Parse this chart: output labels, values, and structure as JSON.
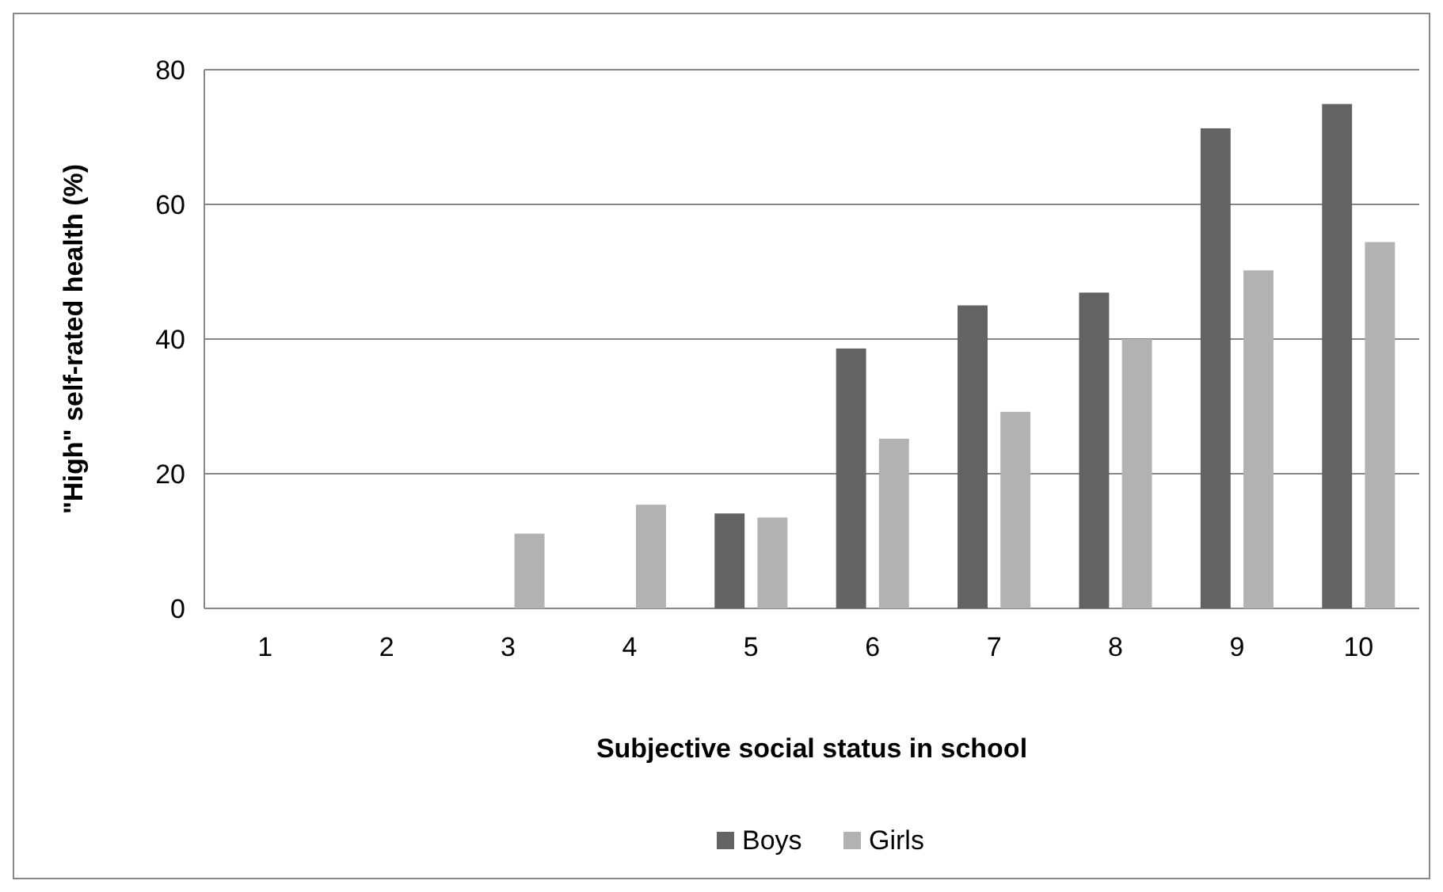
{
  "chart_data": {
    "type": "bar",
    "xlabel": "Subjective social status in school",
    "ylabel": "\"High\" self-rated health (%)",
    "categories": [
      "1",
      "2",
      "3",
      "4",
      "5",
      "6",
      "7",
      "8",
      "9",
      "10"
    ],
    "series": [
      {
        "name": "Boys",
        "color": "#636363",
        "values": [
          null,
          null,
          null,
          null,
          14.1,
          38.6,
          45,
          46.9,
          71.3,
          74.9
        ]
      },
      {
        "name": "Girls",
        "color": "#b2b2b2",
        "values": [
          null,
          null,
          11.1,
          15.4,
          13.5,
          25.2,
          29.2,
          40,
          50.2,
          54.4
        ]
      }
    ],
    "ylim": [
      0,
      80
    ],
    "yticks": [
      0,
      20,
      40,
      60,
      80
    ],
    "grid": "y",
    "legend": "bottom"
  }
}
